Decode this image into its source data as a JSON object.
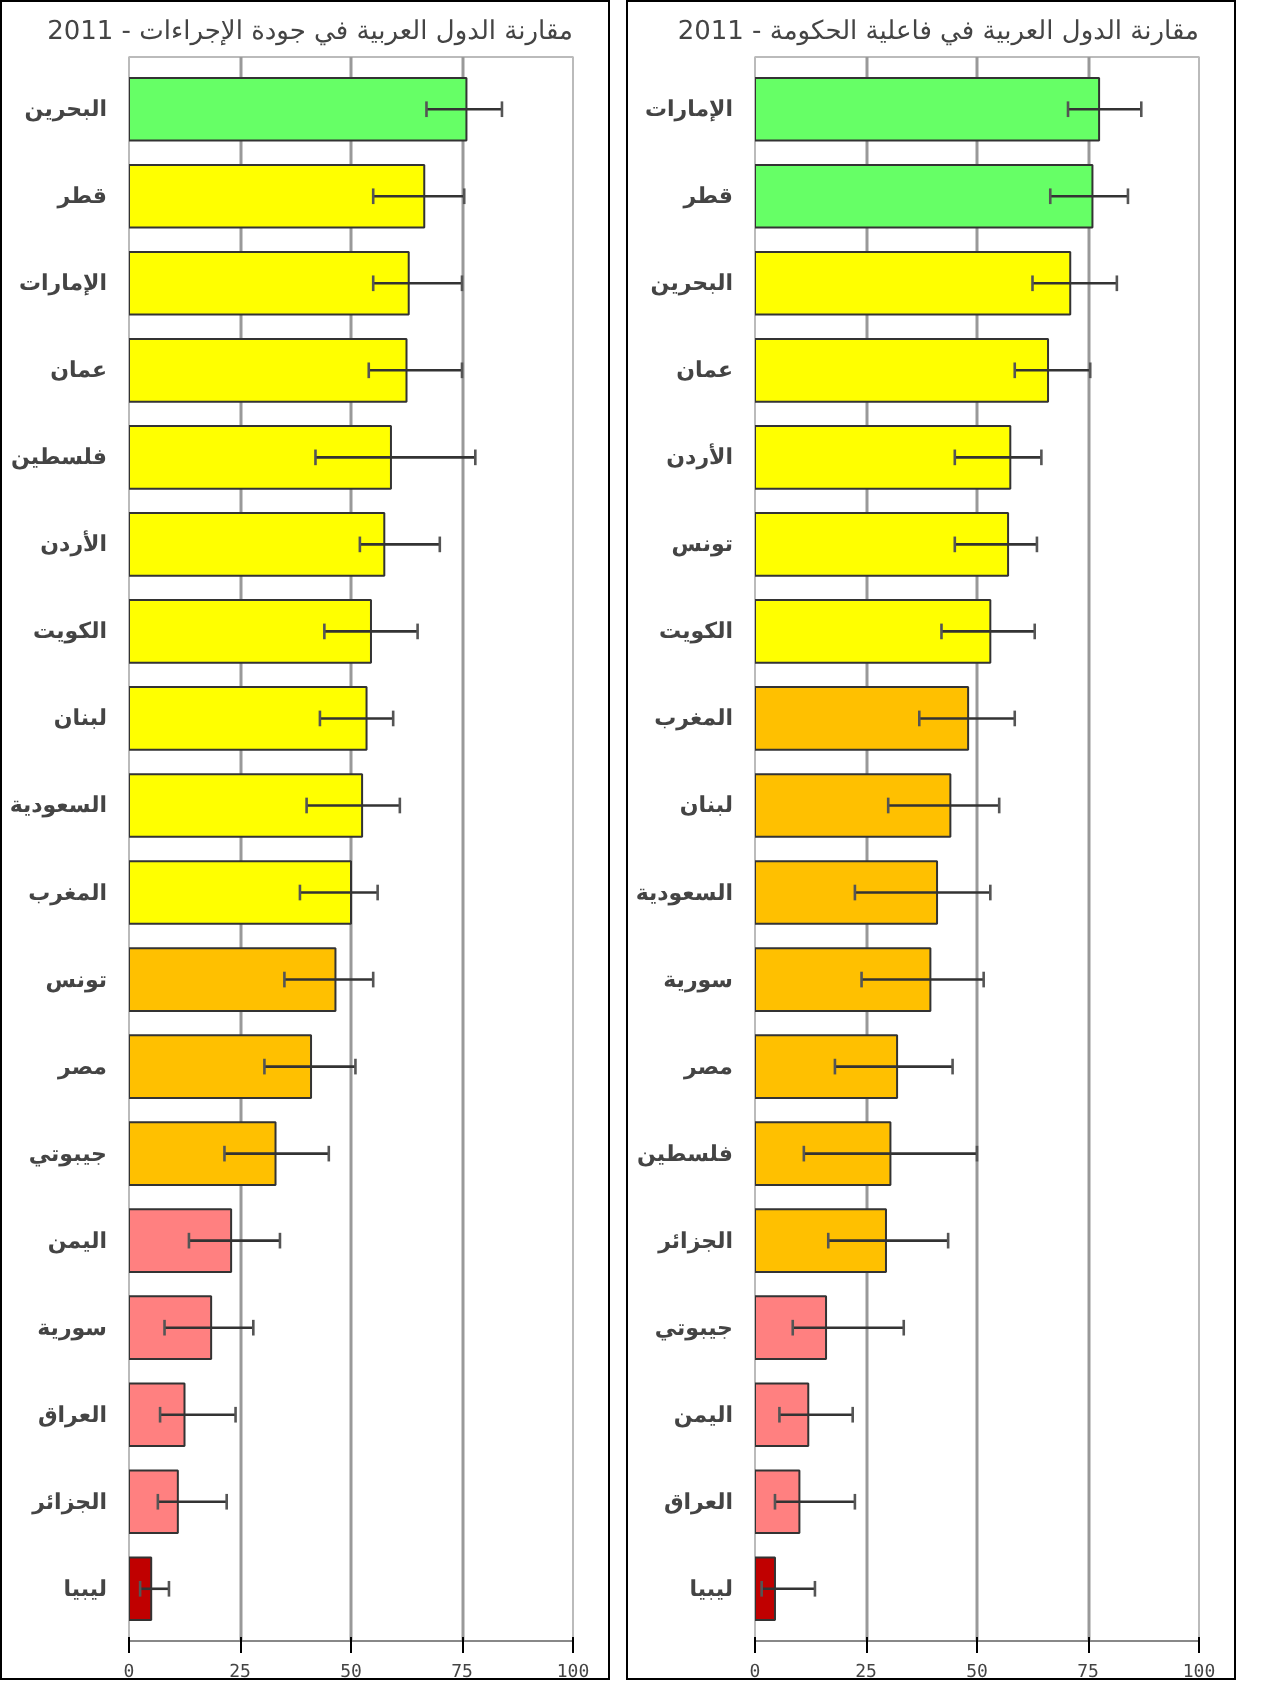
{
  "chart_data": [
    {
      "type": "bar",
      "orientation": "horizontal",
      "title": "مقارنة الدول العربية في جودة الإجراءات - 2011",
      "categories": [
        "البحرين",
        "قطر",
        "الإمارات",
        "عمان",
        "فلسطين",
        "الأردن",
        "الكويت",
        "لبنان",
        "السعودية",
        "المغرب",
        "تونس",
        "مصر",
        "جيبوتي",
        "اليمن",
        "سورية",
        "العراق",
        "الجزائر",
        "ليبيا"
      ],
      "values": [
        76,
        66.5,
        63,
        62.5,
        59,
        57.5,
        54.5,
        53.5,
        52.5,
        50,
        46.5,
        41,
        33,
        23,
        18.5,
        12.5,
        11,
        5
      ],
      "errors": [
        [
          67,
          84
        ],
        [
          55,
          75.5
        ],
        [
          55,
          75
        ],
        [
          54,
          75
        ],
        [
          42,
          78
        ],
        [
          52,
          70
        ],
        [
          44,
          65
        ],
        [
          43,
          59.5
        ],
        [
          40,
          61
        ],
        [
          38.5,
          56
        ],
        [
          35,
          55
        ],
        [
          30.5,
          51
        ],
        [
          21.5,
          45
        ],
        [
          13.5,
          34
        ],
        [
          8,
          28
        ],
        [
          7,
          24
        ],
        [
          6.5,
          22
        ],
        [
          2.5,
          9
        ]
      ],
      "colors": [
        "#66ff66",
        "#ffff00",
        "#ffff00",
        "#ffff00",
        "#ffff00",
        "#ffff00",
        "#ffff00",
        "#ffff00",
        "#ffff00",
        "#ffff00",
        "#ffc000",
        "#ffc000",
        "#ffc000",
        "#ff8080",
        "#ff8080",
        "#ff8080",
        "#ff8080",
        "#c00000"
      ],
      "xlim": [
        0,
        100
      ],
      "xticks": [
        0,
        25,
        50,
        75,
        100
      ],
      "grid": "x"
    },
    {
      "type": "bar",
      "orientation": "horizontal",
      "title": "مقارنة الدول العربية في فاعلية الحكومة - 2011",
      "categories": [
        "الإمارات",
        "قطر",
        "البحرين",
        "عمان",
        "الأردن",
        "تونس",
        "الكويت",
        "المغرب",
        "لبنان",
        "السعودية",
        "سورية",
        "مصر",
        "فلسطين",
        "الجزائر",
        "جيبوتي",
        "اليمن",
        "العراق",
        "ليبيا"
      ],
      "values": [
        77.5,
        76,
        71,
        66,
        57.5,
        57,
        53,
        48,
        44,
        41,
        39.5,
        32,
        30.5,
        29.5,
        16,
        12,
        10,
        4.5
      ],
      "errors": [
        [
          70.5,
          87
        ],
        [
          66.5,
          84
        ],
        [
          62.5,
          81.5
        ],
        [
          58.5,
          75.5
        ],
        [
          45,
          64.5
        ],
        [
          45,
          63.5
        ],
        [
          42,
          63
        ],
        [
          37,
          58.5
        ],
        [
          30,
          55
        ],
        [
          22.5,
          53
        ],
        [
          24,
          51.5
        ],
        [
          18,
          44.5
        ],
        [
          11,
          50
        ],
        [
          16.5,
          43.5
        ],
        [
          8.5,
          33.5
        ],
        [
          5.5,
          22
        ],
        [
          4.5,
          22.5
        ],
        [
          1.5,
          13.5
        ]
      ],
      "colors": [
        "#66ff66",
        "#66ff66",
        "#ffff00",
        "#ffff00",
        "#ffff00",
        "#ffff00",
        "#ffff00",
        "#ffc000",
        "#ffc000",
        "#ffc000",
        "#ffc000",
        "#ffc000",
        "#ffc000",
        "#ffc000",
        "#ff8080",
        "#ff8080",
        "#ff8080",
        "#c00000"
      ],
      "xlim": [
        0,
        100
      ],
      "xticks": [
        0,
        25,
        50,
        75,
        100
      ],
      "grid": "x"
    }
  ]
}
